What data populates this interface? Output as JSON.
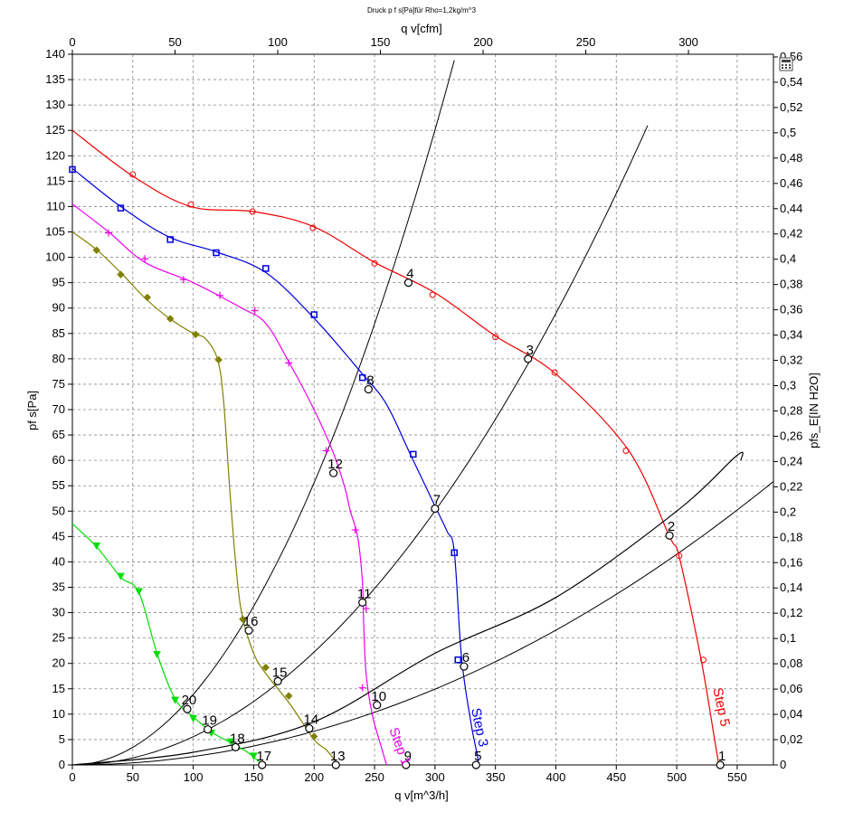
{
  "chart_data": {
    "type": "line",
    "title": "Druck p f s[Pa]für Rho=1,2kg/m^3",
    "xlabel": "q v[m^3/h]",
    "x2label": "q v[cfm]",
    "ylabel": "pf s[Pa]",
    "y2label": "pfs_E[IN H2O]",
    "xlim": [
      0,
      580
    ],
    "ylim": [
      0,
      140
    ],
    "x_ticks": [
      0,
      50,
      100,
      150,
      200,
      250,
      300,
      350,
      400,
      450,
      500,
      550
    ],
    "y_ticks": [
      0,
      5,
      10,
      15,
      20,
      25,
      30,
      35,
      40,
      45,
      50,
      55,
      60,
      65,
      70,
      75,
      80,
      85,
      90,
      95,
      100,
      105,
      110,
      115,
      120,
      125,
      130,
      135,
      140
    ],
    "x2_ticks": [
      0,
      50,
      100,
      150,
      200,
      250,
      300
    ],
    "x2_tick_values": [
      0,
      84.95,
      169.9,
      254.85,
      339.8,
      424.75,
      509.7
    ],
    "y2_ticks": [
      "0",
      "0,02",
      "0,04",
      "0,06",
      "0,08",
      "0,1",
      "0,12",
      "0,14",
      "0,16",
      "0,18",
      "0,2",
      "0,22",
      "0,24",
      "0,26",
      "0,28",
      "0,3",
      "0,32",
      "0,34",
      "0,36",
      "0,38",
      "0,4",
      "0,42",
      "0,44",
      "0,46",
      "0,48",
      "0,5",
      "0,52",
      "0,54",
      "0,56"
    ],
    "y2_tick_values": [
      0,
      4.98,
      9.96,
      14.94,
      19.93,
      24.91,
      29.89,
      34.87,
      39.85,
      44.83,
      49.81,
      54.79,
      59.77,
      64.75,
      69.74,
      74.72,
      79.7,
      84.68,
      89.66,
      94.64,
      99.62,
      104.6,
      109.58,
      114.56,
      119.55,
      124.53,
      129.51,
      134.49,
      139.47
    ],
    "grid": true,
    "series": [
      {
        "name": "Step 5",
        "color": "#ee0000",
        "marker": "circle",
        "values": [
          [
            0,
            125
          ],
          [
            50,
            116
          ],
          [
            98,
            110
          ],
          [
            150,
            109
          ],
          [
            200,
            106
          ],
          [
            250,
            99
          ],
          [
            300,
            93
          ],
          [
            350,
            84.5
          ],
          [
            400,
            77
          ],
          [
            460,
            62
          ],
          [
            494,
            45
          ],
          [
            502,
            41
          ],
          [
            520,
            21
          ],
          [
            532,
            4
          ],
          [
            535,
            0
          ]
        ],
        "marker_points": [
          [
            50,
            116.3
          ],
          [
            98,
            110.4
          ],
          [
            149,
            109
          ],
          [
            199,
            105.8
          ],
          [
            250,
            98.8
          ],
          [
            298,
            92.6
          ],
          [
            350,
            84.3
          ],
          [
            399,
            77.3
          ],
          [
            458,
            61.9
          ],
          [
            502,
            41.2
          ],
          [
            522,
            20.7
          ]
        ]
      },
      {
        "name": "Step 3",
        "color": "#0000dd",
        "marker": "square",
        "values": [
          [
            0,
            117.5
          ],
          [
            40,
            110
          ],
          [
            80,
            104
          ],
          [
            120,
            101
          ],
          [
            160,
            97
          ],
          [
            200,
            88
          ],
          [
            240,
            77
          ],
          [
            260,
            71
          ],
          [
            280,
            61
          ],
          [
            300,
            51
          ],
          [
            310,
            46
          ],
          [
            316,
            42
          ],
          [
            322,
            21
          ],
          [
            330,
            8
          ],
          [
            335,
            2
          ],
          [
            336,
            0
          ]
        ],
        "marker_points": [
          [
            0,
            117.3
          ],
          [
            40,
            109.7
          ],
          [
            81,
            103.5
          ],
          [
            119,
            100.9
          ],
          [
            160,
            97.8
          ],
          [
            200,
            88.7
          ],
          [
            240,
            76.3
          ],
          [
            282,
            61.2
          ],
          [
            316,
            41.8
          ],
          [
            319,
            20.7
          ]
        ]
      },
      {
        "name": "Step 1",
        "color": "#ee00ee",
        "marker": "plus",
        "values": [
          [
            0,
            110.5
          ],
          [
            30,
            105
          ],
          [
            60,
            99
          ],
          [
            100,
            95
          ],
          [
            140,
            90
          ],
          [
            160,
            87
          ],
          [
            180,
            79
          ],
          [
            200,
            70
          ],
          [
            215,
            62
          ],
          [
            225,
            55
          ],
          [
            230,
            50
          ],
          [
            236,
            45
          ],
          [
            240,
            36
          ],
          [
            241,
            28
          ],
          [
            243,
            18
          ],
          [
            248,
            10
          ],
          [
            255,
            4
          ],
          [
            260,
            0
          ]
        ],
        "marker_points": [
          [
            30,
            104.8
          ],
          [
            60,
            99.7
          ],
          [
            92,
            95.6
          ],
          [
            122,
            92.5
          ],
          [
            151,
            89.5
          ],
          [
            179,
            79.2
          ],
          [
            210,
            61.9
          ],
          [
            234,
            46.3
          ],
          [
            243,
            30.8
          ],
          [
            240,
            15.2
          ]
        ]
      },
      {
        "name": "",
        "color": "#808000",
        "marker": "diamond",
        "values": [
          [
            0,
            105
          ],
          [
            20,
            101.5
          ],
          [
            40,
            97
          ],
          [
            60,
            92
          ],
          [
            80,
            88
          ],
          [
            100,
            85
          ],
          [
            110,
            84
          ],
          [
            120,
            80
          ],
          [
            125,
            72
          ],
          [
            130,
            55
          ],
          [
            135,
            40
          ],
          [
            140,
            30
          ],
          [
            150,
            22
          ],
          [
            160,
            18
          ],
          [
            180,
            12
          ],
          [
            200,
            5
          ],
          [
            210,
            3
          ],
          [
            220,
            0
          ]
        ],
        "marker_points": [
          [
            20,
            101.4
          ],
          [
            40,
            96.6
          ],
          [
            62,
            92.1
          ],
          [
            81,
            87.9
          ],
          [
            102,
            84.8
          ],
          [
            121,
            79.8
          ],
          [
            141,
            28.7
          ],
          [
            160,
            19.2
          ],
          [
            179,
            13.6
          ],
          [
            200,
            5.6
          ]
        ]
      },
      {
        "name": "",
        "color": "#00dd00",
        "marker": "triangle",
        "values": [
          [
            0,
            47.5
          ],
          [
            20,
            43
          ],
          [
            40,
            37
          ],
          [
            55,
            34
          ],
          [
            70,
            22
          ],
          [
            85,
            13
          ],
          [
            100,
            9.5
          ],
          [
            115,
            6.5
          ],
          [
            130,
            4.5
          ],
          [
            145,
            2.5
          ],
          [
            155,
            0.5
          ],
          [
            157,
            0
          ]
        ],
        "marker_points": [
          [
            20,
            43.2
          ],
          [
            40,
            37.2
          ],
          [
            55,
            34.2
          ],
          [
            70,
            21.8
          ],
          [
            85,
            12.8
          ],
          [
            100,
            9.2
          ],
          [
            115,
            6.3
          ],
          [
            131,
            4.6
          ],
          [
            150,
            1.8
          ]
        ]
      },
      {
        "name": "",
        "color": "#000000",
        "marker": "none",
        "values": [
          [
            0,
            0
          ],
          [
            100,
            2.5
          ],
          [
            200,
            8.5
          ],
          [
            300,
            22
          ],
          [
            400,
            33
          ],
          [
            500,
            50
          ],
          [
            550,
            61
          ],
          [
            553,
            60
          ]
        ]
      }
    ],
    "system_curves": [
      {
        "k": 0.000166,
        "xmax": 580
      },
      {
        "k": 0.000556,
        "xmax": 478
      },
      {
        "k": 0.00139,
        "xmax": 320
      }
    ],
    "operating_points": [
      {
        "label": "1",
        "x": 536,
        "y": 0
      },
      {
        "label": "2",
        "x": 494,
        "y": 45.2
      },
      {
        "label": "3",
        "x": 377,
        "y": 80
      },
      {
        "label": "4",
        "x": 278,
        "y": 95
      },
      {
        "label": "5",
        "x": 334,
        "y": 0
      },
      {
        "label": "6",
        "x": 324,
        "y": 19.4
      },
      {
        "label": "7",
        "x": 300,
        "y": 50.5
      },
      {
        "label": "8",
        "x": 245,
        "y": 74
      },
      {
        "label": "9",
        "x": 276,
        "y": 0
      },
      {
        "label": "10",
        "x": 252,
        "y": 11.8
      },
      {
        "label": "11",
        "x": 240,
        "y": 32
      },
      {
        "label": "12",
        "x": 216,
        "y": 57.5
      },
      {
        "label": "13",
        "x": 218,
        "y": 0
      },
      {
        "label": "14",
        "x": 196,
        "y": 7.2
      },
      {
        "label": "15",
        "x": 170,
        "y": 16.5
      },
      {
        "label": "16",
        "x": 146,
        "y": 26.5
      },
      {
        "label": "17",
        "x": 157,
        "y": 0
      },
      {
        "label": "18",
        "x": 135,
        "y": 3.5
      },
      {
        "label": "19",
        "x": 112,
        "y": 7
      },
      {
        "label": "20",
        "x": 95,
        "y": 11
      }
    ],
    "curve_labels": [
      {
        "text": "Step 5",
        "color": "#ee0000",
        "x": 530,
        "y": 15,
        "rotate": 78
      },
      {
        "text": "Step 3",
        "color": "#0000dd",
        "x": 330,
        "y": 11,
        "rotate": 78
      },
      {
        "text": "Step 1",
        "color": "#ee00ee",
        "x": 262,
        "y": 7,
        "rotate": 70
      }
    ]
  },
  "toolbar": {
    "icon": "calculator-icon"
  }
}
